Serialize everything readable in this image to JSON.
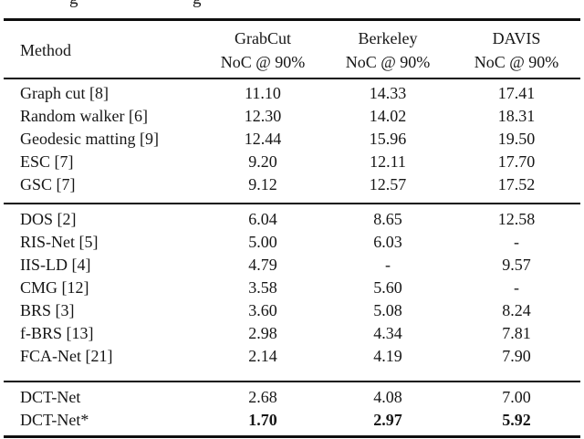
{
  "page": {
    "background": "#ffffff",
    "text_color": "#161616",
    "rule_color": "#0e0e0e"
  },
  "caption_fragment": {
    "glyphs": [
      "g",
      "g"
    ]
  },
  "table": {
    "header": {
      "method_label": "Method",
      "columns": [
        {
          "dataset": "GrabCut",
          "metric": "NoC @ 90%"
        },
        {
          "dataset": "Berkeley",
          "metric": "NoC @ 90%"
        },
        {
          "dataset": "DAVIS",
          "metric": "NoC @ 90%"
        }
      ]
    },
    "groups": [
      {
        "rows": [
          {
            "method": "Graph cut [8]",
            "values": [
              "11.10",
              "14.33",
              "17.41"
            ],
            "bold_values": false
          },
          {
            "method": "Random walker [6]",
            "values": [
              "12.30",
              "14.02",
              "18.31"
            ],
            "bold_values": false
          },
          {
            "method": "Geodesic matting [9]",
            "values": [
              "12.44",
              "15.96",
              "19.50"
            ],
            "bold_values": false
          },
          {
            "method": "ESC [7]",
            "values": [
              "9.20",
              "12.11",
              "17.70"
            ],
            "bold_values": false
          },
          {
            "method": "GSC [7]",
            "values": [
              "9.12",
              "12.57",
              "17.52"
            ],
            "bold_values": false
          }
        ]
      },
      {
        "rows": [
          {
            "method": "DOS [2]",
            "values": [
              "6.04",
              "8.65",
              "12.58"
            ],
            "bold_values": false
          },
          {
            "method": "RIS-Net [5]",
            "values": [
              "5.00",
              "6.03",
              "-"
            ],
            "bold_values": false
          },
          {
            "method": "IIS-LD [4]",
            "values": [
              "4.79",
              "-",
              "9.57"
            ],
            "bold_values": false
          },
          {
            "method": "CMG [12]",
            "values": [
              "3.58",
              "5.60",
              "-"
            ],
            "bold_values": false
          },
          {
            "method": "BRS [3]",
            "values": [
              "3.60",
              "5.08",
              "8.24"
            ],
            "bold_values": false
          },
          {
            "method": "f-BRS [13]",
            "values": [
              "2.98",
              "4.34",
              "7.81"
            ],
            "bold_values": false
          },
          {
            "method": "FCA-Net [21]",
            "values": [
              "2.14",
              "4.19",
              "7.90"
            ],
            "bold_values": false
          }
        ]
      },
      {
        "rows": [
          {
            "method": "DCT-Net",
            "values": [
              "2.68",
              "4.08",
              "7.00"
            ],
            "bold_values": false
          },
          {
            "method": "DCT-Net*",
            "values": [
              "1.70",
              "2.97",
              "5.92"
            ],
            "bold_values": true
          }
        ]
      }
    ]
  }
}
